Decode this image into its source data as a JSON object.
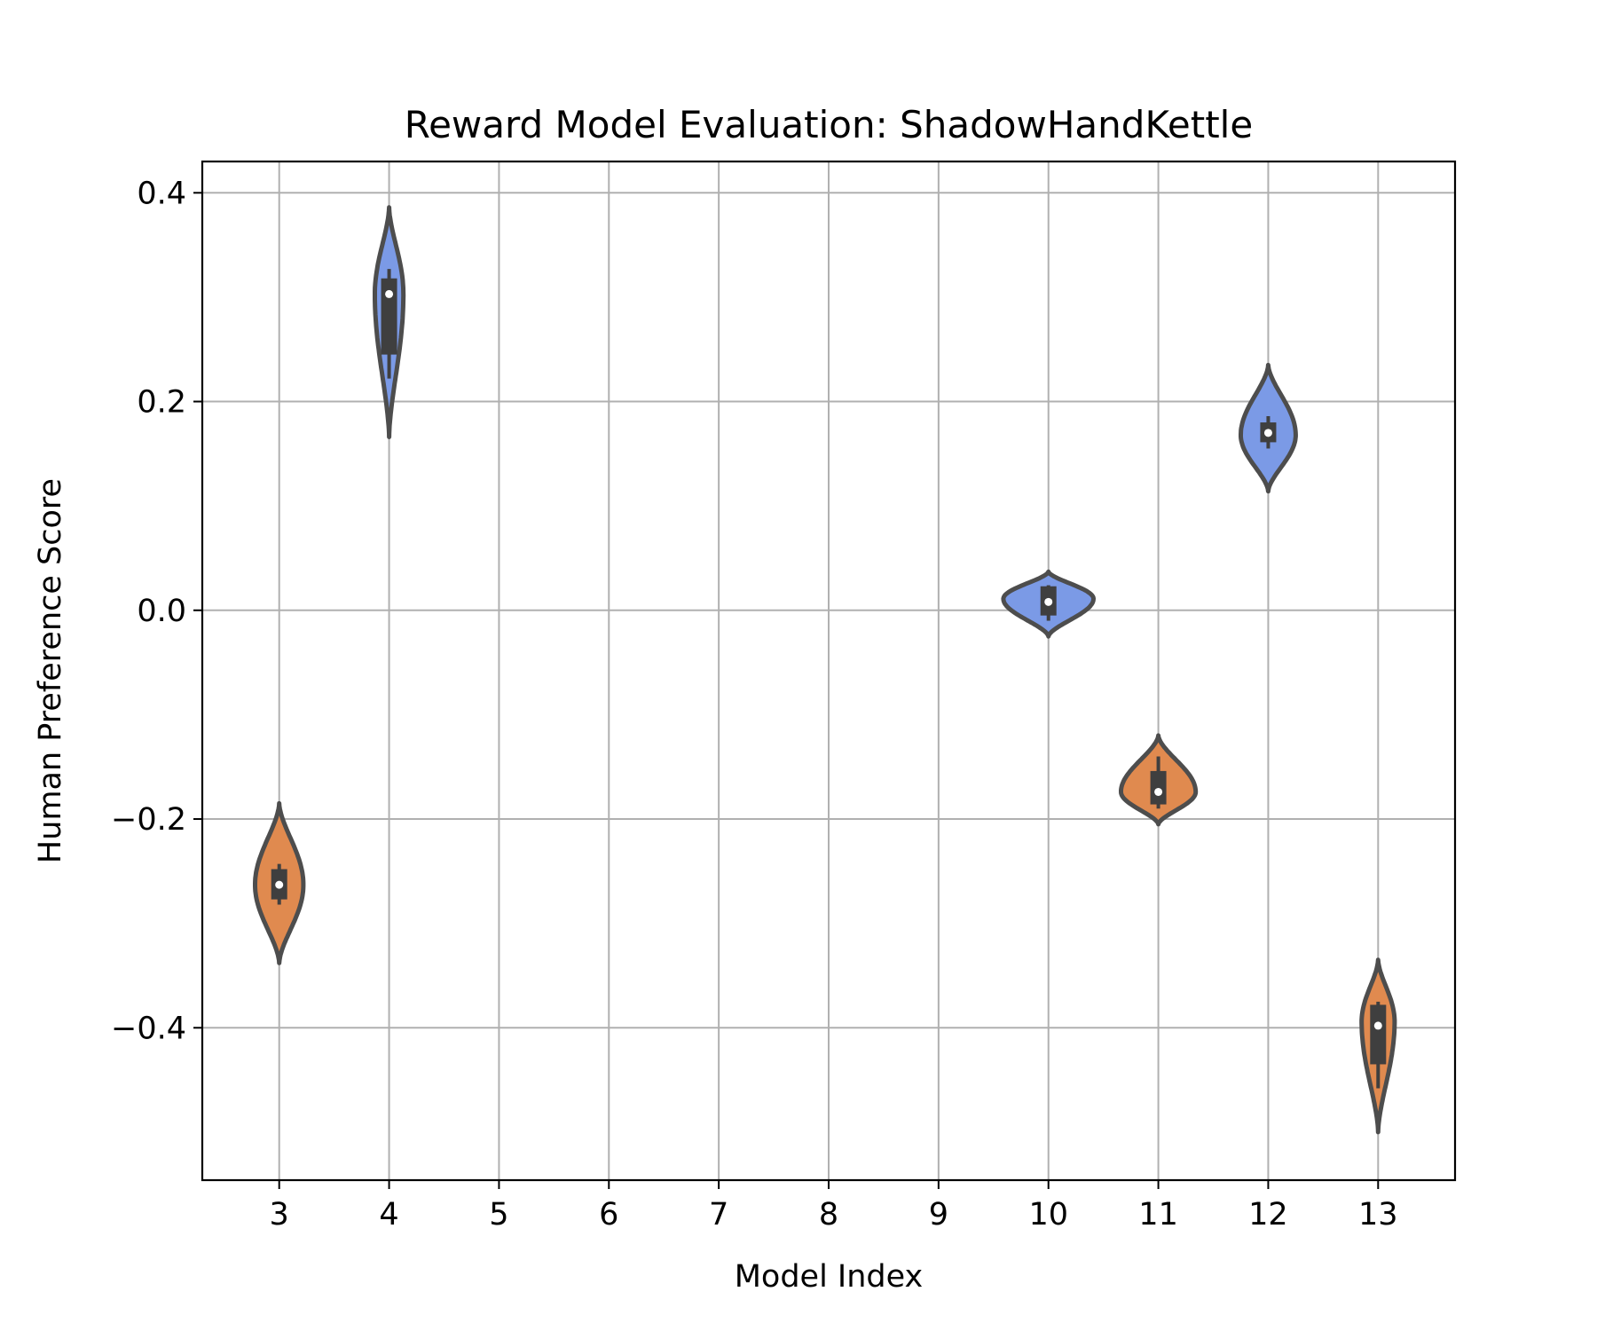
{
  "chart_data": {
    "type": "violin",
    "title": "Reward Model Evaluation: ShadowHandKettle",
    "xlabel": "Model Index",
    "ylabel": "Human Preference Score",
    "xlim": [
      2.3,
      13.7
    ],
    "ylim": [
      -0.546,
      0.43
    ],
    "x_ticks": [
      3,
      4,
      5,
      6,
      7,
      8,
      9,
      10,
      11,
      12,
      13
    ],
    "y_ticks": [
      {
        "value": 0.4,
        "label": "0.4"
      },
      {
        "value": 0.2,
        "label": "0.2"
      },
      {
        "value": 0.0,
        "label": "0.0"
      },
      {
        "value": -0.2,
        "label": "−0.2"
      },
      {
        "value": -0.4,
        "label": "−0.4"
      }
    ],
    "grid": true,
    "colors": {
      "positive": "#7b9ae6",
      "negative": "#e08a4f",
      "outline": "#4d4d4d",
      "grid": "#b0b0b0",
      "box": "#3f3f3f",
      "median": "#ffffff"
    },
    "violins": [
      {
        "x": 3,
        "color": "negative",
        "median": -0.263,
        "q1": -0.277,
        "q3": -0.248,
        "whisker_low": -0.282,
        "whisker_high": -0.243,
        "min": -0.338,
        "max": -0.185,
        "peak": -0.263,
        "halfwidth": 0.22
      },
      {
        "x": 4,
        "color": "positive",
        "median": 0.303,
        "q1": 0.245,
        "q3": 0.318,
        "whisker_low": 0.222,
        "whisker_high": 0.327,
        "min": 0.166,
        "max": 0.386,
        "peak": 0.303,
        "halfwidth": 0.13
      },
      {
        "x": 10,
        "color": "positive",
        "median": 0.008,
        "q1": -0.005,
        "q3": 0.023,
        "whisker_low": -0.01,
        "whisker_high": 0.024,
        "min": -0.025,
        "max": 0.037,
        "peak": 0.011,
        "halfwidth": 0.41
      },
      {
        "x": 11,
        "color": "negative",
        "median": -0.174,
        "q1": -0.186,
        "q3": -0.154,
        "whisker_low": -0.19,
        "whisker_high": -0.14,
        "min": -0.205,
        "max": -0.12,
        "peak": -0.174,
        "halfwidth": 0.34
      },
      {
        "x": 12,
        "color": "positive",
        "median": 0.17,
        "q1": 0.161,
        "q3": 0.18,
        "whisker_low": 0.155,
        "whisker_high": 0.186,
        "min": 0.114,
        "max": 0.235,
        "peak": 0.168,
        "halfwidth": 0.25
      },
      {
        "x": 13,
        "color": "negative",
        "median": -0.398,
        "q1": -0.435,
        "q3": -0.378,
        "whisker_low": -0.458,
        "whisker_high": -0.375,
        "min": -0.5,
        "max": -0.335,
        "peak": -0.394,
        "halfwidth": 0.15
      }
    ]
  }
}
